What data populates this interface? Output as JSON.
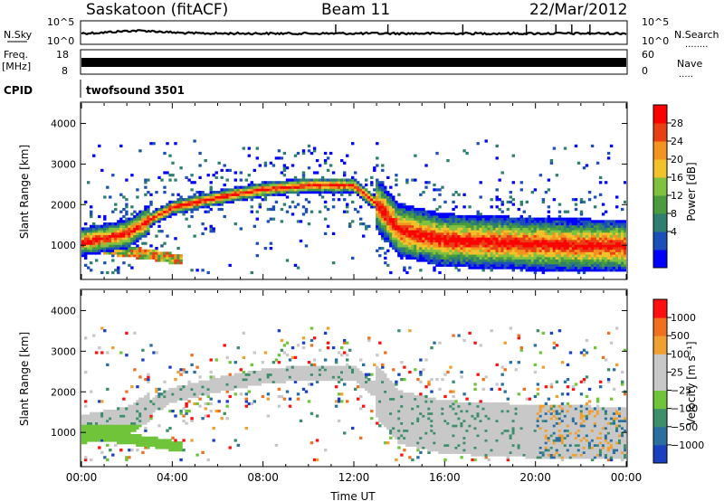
{
  "header": {
    "station": "Saskatoon (fitACF)",
    "beam": "Beam 11",
    "date": "22/Mar/2012"
  },
  "status_panels": {
    "nsky_label": "N.Sky",
    "nsky_ticks": [
      "10^5",
      "10^0"
    ],
    "nsearch_label": "N.Search",
    "nsearch_ticks": [
      "10^5",
      "10^0"
    ],
    "freq_label": "Freq.",
    "freq_unit": "[MHz]",
    "freq_ticks": [
      "18",
      "8"
    ],
    "nave_label": "Nave",
    "nave_ticks": [
      "60",
      "0"
    ],
    "cpid_label": "CPID",
    "cpid_value": "twofsound 3501"
  },
  "chart_data": [
    {
      "type": "heatmap",
      "name": "power",
      "ylabel": "Slant Range [km]",
      "xlabel": "",
      "yticks": [
        "4000",
        "3000",
        "2000",
        "1000"
      ],
      "ylim": [
        180,
        4500
      ],
      "xlim": [
        "00:00",
        "24:00"
      ],
      "colorbar": {
        "label": "Power [dB]",
        "ticks": [
          "28",
          "24",
          "20",
          "16",
          "12",
          "8",
          "4"
        ],
        "colors": [
          "#0000ff",
          "#1d4fb8",
          "#2e7f70",
          "#4a9a3e",
          "#7fc240",
          "#f2c22b",
          "#f39321",
          "#e84014",
          "#ff0000"
        ]
      },
      "bands": [
        {
          "desc": "main echo band",
          "points": [
            [
              0.0,
              1050
            ],
            [
              1.0,
              1150
            ],
            [
              2.0,
              1250
            ],
            [
              3.0,
              1600
            ],
            [
              4.0,
              1900
            ],
            [
              6.0,
              2150
            ],
            [
              8.0,
              2350
            ],
            [
              10.0,
              2450
            ],
            [
              12.0,
              2450
            ],
            [
              13.0,
              2000
            ],
            [
              14.0,
              1350
            ],
            [
              16.0,
              1100
            ],
            [
              20.0,
              1000
            ],
            [
              24.0,
              950
            ]
          ]
        },
        {
          "desc": "lower early band",
          "points": [
            [
              0.0,
              1000
            ],
            [
              1.5,
              850
            ],
            [
              3.0,
              750
            ],
            [
              4.5,
              600
            ]
          ]
        }
      ]
    },
    {
      "type": "heatmap",
      "name": "velocity",
      "ylabel": "Slant Range [km]",
      "xlabel": "Time UT",
      "yticks": [
        "4000",
        "3000",
        "2000",
        "1000"
      ],
      "xticks": [
        "00:00",
        "04:00",
        "08:00",
        "12:00",
        "16:00",
        "20:00",
        "00:00"
      ],
      "ylim": [
        180,
        4500
      ],
      "colorbar": {
        "label": "Velocity [m s⁻¹]",
        "ticks": [
          "1000",
          "500",
          "100",
          "25",
          "−25",
          "−100",
          "−500",
          "−1000"
        ],
        "colors": [
          "#1a40c0",
          "#2a6fa0",
          "#3d8f6a",
          "#6fc43a",
          "#c8c8c8",
          "#c8c8c8",
          "#f0a030",
          "#f07020",
          "#ff1010"
        ]
      }
    }
  ]
}
